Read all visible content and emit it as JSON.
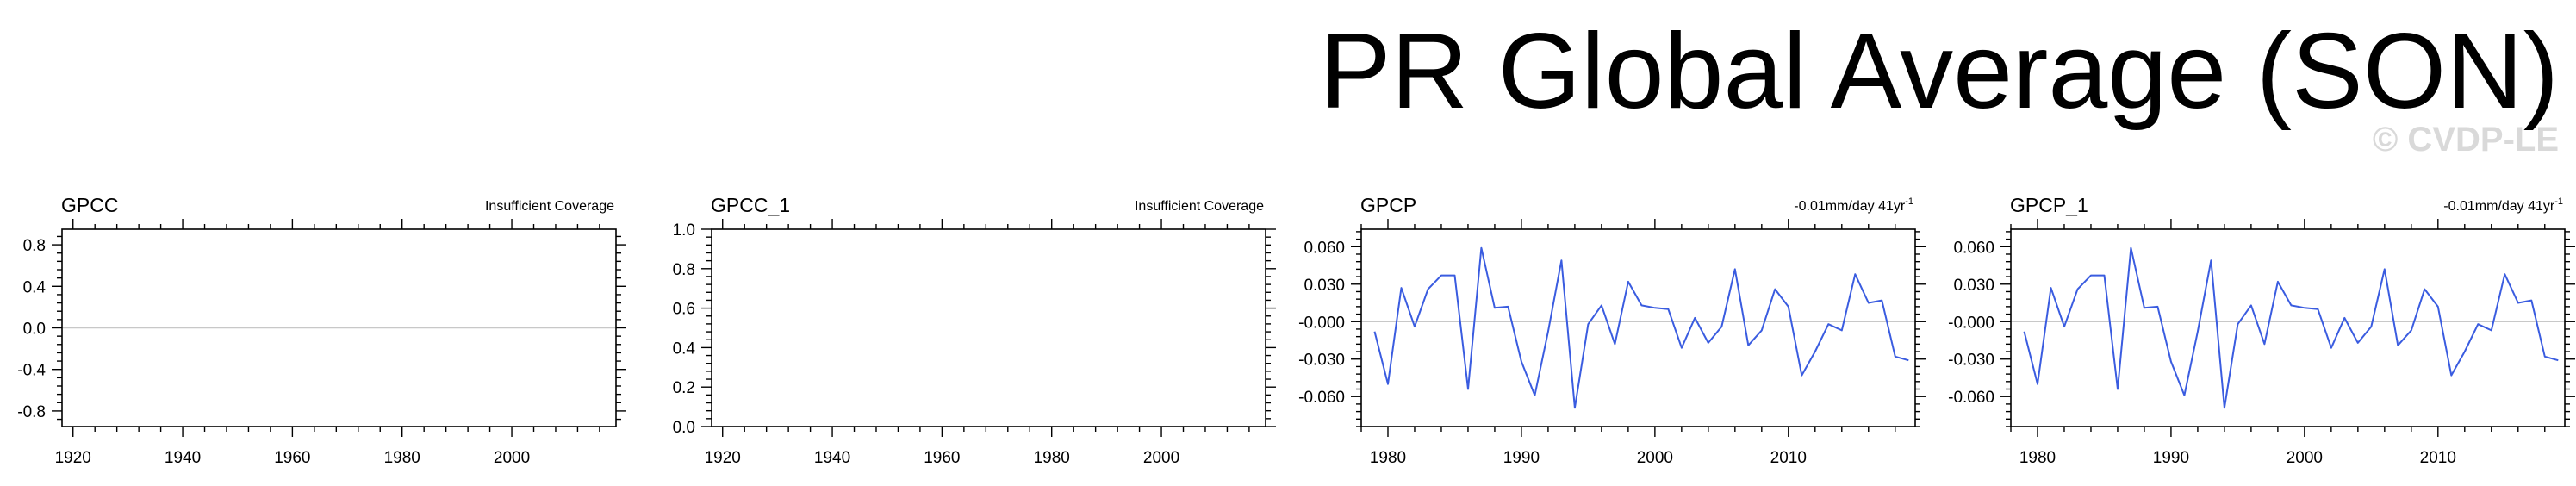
{
  "title": "PR Global Average (SON)",
  "watermark": "© CVDP-LE",
  "colors": {
    "line": "#3a5ce0",
    "zero_line": "#c8c8c8",
    "axis": "#000000",
    "watermark": "#d9d9d9"
  },
  "chart_data": [
    {
      "type": "line",
      "title": "GPCC",
      "annotation": "Insufficient Coverage",
      "xlim": [
        1918,
        2019
      ],
      "ylim": [
        -0.95,
        0.95
      ],
      "xticks": [
        1920,
        1940,
        1960,
        1980,
        2000
      ],
      "xtick_labels": [
        "1920",
        "1940",
        "1960",
        "1980",
        "2000"
      ],
      "yticks": [
        0.8,
        0.4,
        0.0,
        -0.4,
        -0.8
      ],
      "ytick_labels": [
        "0.8",
        "0.4",
        "0.0",
        "-0.4",
        "-0.8"
      ],
      "zero_line": 0,
      "series": []
    },
    {
      "type": "line",
      "title": "GPCC_1",
      "annotation": "Insufficient Coverage",
      "xlim": [
        1918,
        2019
      ],
      "ylim": [
        0.0,
        1.0
      ],
      "xticks": [
        1920,
        1940,
        1960,
        1980,
        2000
      ],
      "xtick_labels": [
        "1920",
        "1940",
        "1960",
        "1980",
        "2000"
      ],
      "yticks": [
        1.0,
        0.8,
        0.6,
        0.4,
        0.2,
        0.0
      ],
      "ytick_labels": [
        "1.0",
        "0.8",
        "0.6",
        "0.4",
        "0.2",
        "0.0"
      ],
      "series": []
    },
    {
      "type": "line",
      "title": "GPCP",
      "annotation": "-0.01mm/day 41yr",
      "annotation_sup": "-1",
      "xlim": [
        1978,
        2019.5
      ],
      "ylim": [
        -0.084,
        0.074
      ],
      "xticks": [
        1980,
        1990,
        2000,
        2010
      ],
      "xtick_labels": [
        "1980",
        "1990",
        "2000",
        "2010"
      ],
      "yticks": [
        0.06,
        0.03,
        0.0,
        -0.03,
        -0.06
      ],
      "ytick_labels": [
        "0.060",
        "0.030",
        "-0.000",
        "-0.030",
        "-0.060"
      ],
      "zero_line": 0,
      "series": [
        {
          "x": [
            1979,
            1980,
            1981,
            1982,
            1983,
            1984,
            1985,
            1986,
            1987,
            1988,
            1989,
            1990,
            1991,
            1992,
            1993,
            1994,
            1995,
            1996,
            1997,
            1998,
            1999,
            2000,
            2001,
            2002,
            2003,
            2004,
            2005,
            2006,
            2007,
            2008,
            2009,
            2010,
            2011,
            2012,
            2013,
            2014,
            2015,
            2016,
            2017,
            2018,
            2019
          ],
          "y": [
            -0.008,
            -0.05,
            0.027,
            -0.004,
            0.026,
            0.037,
            0.037,
            -0.054,
            0.059,
            0.011,
            0.012,
            -0.032,
            -0.059,
            -0.008,
            0.049,
            -0.069,
            -0.002,
            0.013,
            -0.018,
            0.032,
            0.013,
            0.011,
            0.01,
            -0.021,
            0.003,
            -0.017,
            -0.004,
            0.042,
            -0.019,
            -0.007,
            0.026,
            0.012,
            -0.043,
            -0.024,
            -0.002,
            -0.007,
            0.038,
            0.015,
            0.017,
            -0.028,
            -0.031
          ]
        }
      ]
    },
    {
      "type": "line",
      "title": "GPCP_1",
      "annotation": "-0.01mm/day 41yr",
      "annotation_sup": "-1",
      "xlim": [
        1978,
        2019.5
      ],
      "ylim": [
        -0.084,
        0.074
      ],
      "xticks": [
        1980,
        1990,
        2000,
        2010
      ],
      "xtick_labels": [
        "1980",
        "1990",
        "2000",
        "2010"
      ],
      "yticks": [
        0.06,
        0.03,
        0.0,
        -0.03,
        -0.06
      ],
      "ytick_labels": [
        "0.060",
        "0.030",
        "-0.000",
        "-0.030",
        "-0.060"
      ],
      "zero_line": 0,
      "series": [
        {
          "x": [
            1979,
            1980,
            1981,
            1982,
            1983,
            1984,
            1985,
            1986,
            1987,
            1988,
            1989,
            1990,
            1991,
            1992,
            1993,
            1994,
            1995,
            1996,
            1997,
            1998,
            1999,
            2000,
            2001,
            2002,
            2003,
            2004,
            2005,
            2006,
            2007,
            2008,
            2009,
            2010,
            2011,
            2012,
            2013,
            2014,
            2015,
            2016,
            2017,
            2018,
            2019
          ],
          "y": [
            -0.008,
            -0.05,
            0.027,
            -0.004,
            0.026,
            0.037,
            0.037,
            -0.054,
            0.059,
            0.011,
            0.012,
            -0.032,
            -0.059,
            -0.008,
            0.049,
            -0.069,
            -0.002,
            0.013,
            -0.018,
            0.032,
            0.013,
            0.011,
            0.01,
            -0.021,
            0.003,
            -0.017,
            -0.004,
            0.042,
            -0.019,
            -0.007,
            0.026,
            0.012,
            -0.043,
            -0.024,
            -0.002,
            -0.007,
            0.038,
            0.015,
            0.017,
            -0.028,
            -0.031
          ]
        }
      ]
    }
  ]
}
